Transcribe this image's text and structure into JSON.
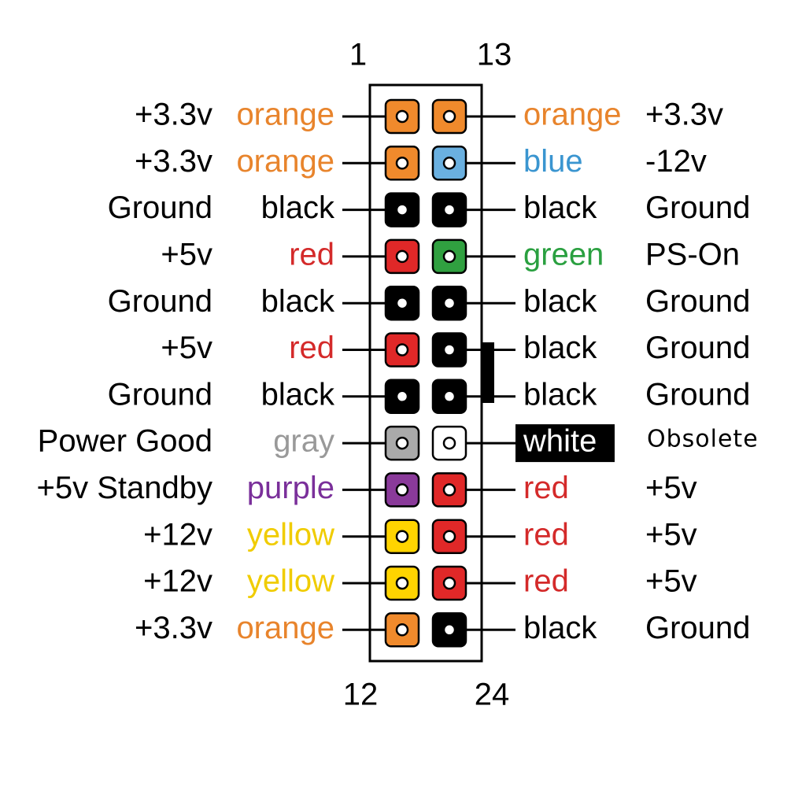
{
  "corner_numbers": {
    "top_left": "1",
    "top_right": "13",
    "bottom_left": "12",
    "bottom_right": "24"
  },
  "left_pins": [
    {
      "label": "+3.3v",
      "wire": "orange",
      "color": "#f08a2c",
      "text_color": "#e8842c"
    },
    {
      "label": "+3.3v",
      "wire": "orange",
      "color": "#f08a2c",
      "text_color": "#e8842c"
    },
    {
      "label": "Ground",
      "wire": "black",
      "color": "#000000",
      "text_color": "#000000"
    },
    {
      "label": "+5v",
      "wire": "red",
      "color": "#e02828",
      "text_color": "#d42a2a"
    },
    {
      "label": "Ground",
      "wire": "black",
      "color": "#000000",
      "text_color": "#000000"
    },
    {
      "label": "+5v",
      "wire": "red",
      "color": "#e02828",
      "text_color": "#d42a2a"
    },
    {
      "label": "Ground",
      "wire": "black",
      "color": "#000000",
      "text_color": "#000000"
    },
    {
      "label": "Power Good",
      "wire": "gray",
      "color": "#aaaaaa",
      "text_color": "#999999"
    },
    {
      "label": "+5v Standby",
      "wire": "purple",
      "color": "#8a3a9a",
      "text_color": "#7a2f9a"
    },
    {
      "label": "+12v",
      "wire": "yellow",
      "color": "#ffd400",
      "text_color": "#f0cc00"
    },
    {
      "label": "+12v",
      "wire": "yellow",
      "color": "#ffd400",
      "text_color": "#f0cc00"
    },
    {
      "label": "+3.3v",
      "wire": "orange",
      "color": "#f08a2c",
      "text_color": "#e8842c"
    }
  ],
  "right_pins": [
    {
      "label": "+3.3v",
      "wire": "orange",
      "color": "#f08a2c",
      "text_color": "#e8842c"
    },
    {
      "label": "-12v",
      "wire": "blue",
      "color": "#6ab0e0",
      "text_color": "#3a95d0"
    },
    {
      "label": "Ground",
      "wire": "black",
      "color": "#000000",
      "text_color": "#000000"
    },
    {
      "label": "PS-On",
      "wire": "green",
      "color": "#30a040",
      "text_color": "#2aa040"
    },
    {
      "label": "Ground",
      "wire": "black",
      "color": "#000000",
      "text_color": "#000000"
    },
    {
      "label": "Ground",
      "wire": "black",
      "color": "#000000",
      "text_color": "#000000"
    },
    {
      "label": "Ground",
      "wire": "black",
      "color": "#000000",
      "text_color": "#000000"
    },
    {
      "label": "Obsolete",
      "wire": "white",
      "color": "#ffffff",
      "text_color": "#ffffff"
    },
    {
      "label": "+5v",
      "wire": "red",
      "color": "#e02828",
      "text_color": "#d42a2a"
    },
    {
      "label": "+5v",
      "wire": "red",
      "color": "#e02828",
      "text_color": "#d42a2a"
    },
    {
      "label": "+5v",
      "wire": "red",
      "color": "#e02828",
      "text_color": "#d42a2a"
    },
    {
      "label": "Ground",
      "wire": "black",
      "color": "#000000",
      "text_color": "#000000"
    }
  ]
}
